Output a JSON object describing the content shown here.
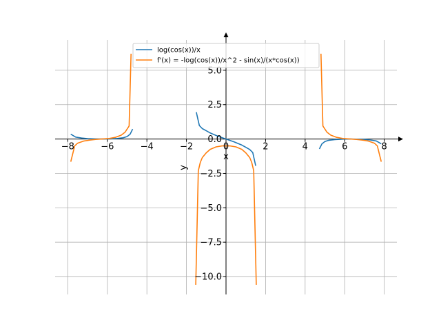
{
  "chart_data": {
    "type": "line",
    "title": "",
    "xlabel": "x",
    "ylabel": "y",
    "xlim": [
      -8.64,
      8.64
    ],
    "ylim": [
      -11.3,
      7.2
    ],
    "x_ticks": [
      -8,
      -6,
      -4,
      -2,
      0,
      2,
      4,
      6,
      8
    ],
    "x_tick_labels": [
      "−8",
      "−6",
      "−4",
      "−2",
      "0",
      "2",
      "4",
      "6",
      "8"
    ],
    "y_ticks": [
      5.0,
      2.5,
      0.0,
      -2.5,
      -5.0,
      -7.5,
      -10.0
    ],
    "y_tick_labels": [
      "5.0",
      "2.5",
      "0.0",
      "−2.5",
      "−5.0",
      "−7.5",
      "−10.0"
    ],
    "grid": true,
    "legend_position": "top-center",
    "series": [
      {
        "name": "log(cos(x))/x",
        "color": "#1f77b4",
        "segments": [
          {
            "x": [
              -7.85,
              -7.6,
              -7.3,
              -7.0,
              -6.6,
              -6.28,
              -5.9,
              -5.5,
              -5.2,
              -5.0,
              -4.85,
              -4.72
            ],
            "y": [
              0.35,
              0.14,
              0.07,
              0.03,
              0.01,
              0.0,
              0.01,
              0.04,
              0.09,
              0.18,
              0.35,
              0.72
            ]
          },
          {
            "x": [
              -1.5,
              -1.35,
              -1.2,
              -1.0,
              -0.8,
              -0.6,
              -0.4,
              -0.2,
              0.0,
              0.2,
              0.4,
              0.6,
              0.8,
              1.0,
              1.2,
              1.35,
              1.5
            ],
            "y": [
              1.95,
              0.98,
              0.76,
              0.6,
              0.44,
              0.32,
              0.2,
              0.1,
              0.0,
              -0.1,
              -0.2,
              -0.32,
              -0.44,
              -0.6,
              -0.76,
              -0.98,
              -1.95
            ]
          },
          {
            "x": [
              4.72,
              4.85,
              5.0,
              5.2,
              5.5,
              5.9,
              6.28,
              6.6,
              7.0,
              7.3,
              7.6,
              7.85
            ],
            "y": [
              -0.72,
              -0.35,
              -0.18,
              -0.09,
              -0.04,
              -0.01,
              0.0,
              -0.01,
              -0.03,
              -0.07,
              -0.14,
              -0.35
            ]
          }
        ]
      },
      {
        "name": "f'(x) = -log(cos(x))/x^2 - sin(x)/(x*cos(x))",
        "color": "#ff7f0e",
        "segments": [
          {
            "x": [
              -7.85,
              -7.65,
              -7.5,
              -7.2,
              -6.9,
              -6.6,
              -6.28,
              -5.9,
              -5.6,
              -5.3,
              -5.1,
              -4.9,
              -4.8
            ],
            "y": [
              -1.65,
              -0.5,
              -0.3,
              -0.15,
              -0.08,
              -0.03,
              0.0,
              0.04,
              0.12,
              0.28,
              0.5,
              0.95,
              6.2
            ]
          },
          {
            "x": [
              -1.53,
              -1.4,
              -1.3,
              -1.2,
              -1.0,
              -0.8,
              -0.5,
              -0.2,
              0.0,
              0.2,
              0.5,
              0.8,
              1.0,
              1.2,
              1.3,
              1.4,
              1.53
            ],
            "y": [
              -10.6,
              -2.3,
              -1.7,
              -1.35,
              -1.0,
              -0.75,
              -0.57,
              -0.5,
              -0.5,
              -0.5,
              -0.57,
              -0.75,
              -1.0,
              -1.35,
              -1.7,
              -2.3,
              -10.6
            ]
          },
          {
            "x": [
              4.8,
              4.9,
              5.1,
              5.3,
              5.6,
              5.9,
              6.28,
              6.6,
              6.9,
              7.2,
              7.5,
              7.65,
              7.85
            ],
            "y": [
              6.2,
              0.95,
              0.5,
              0.28,
              0.12,
              0.04,
              0.0,
              -0.03,
              -0.08,
              -0.15,
              -0.3,
              -0.5,
              -1.65
            ]
          }
        ]
      }
    ]
  }
}
